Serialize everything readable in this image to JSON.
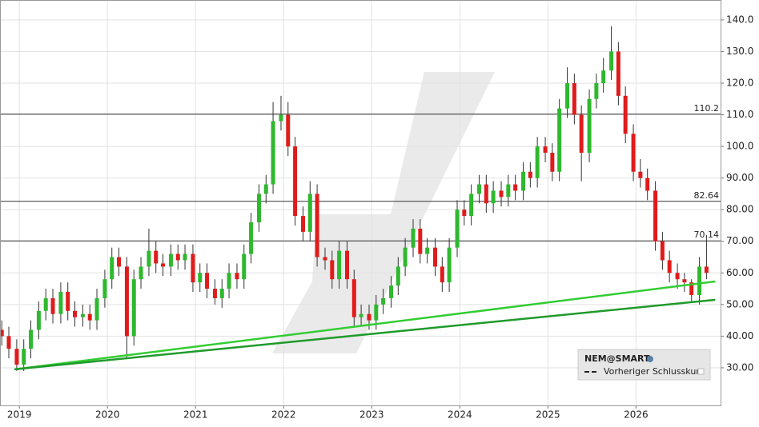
{
  "chart_data": {
    "type": "candlestick",
    "x": [
      2018.8,
      2018.88,
      2018.97,
      2019.05,
      2019.13,
      2019.22,
      2019.3,
      2019.38,
      2019.47,
      2019.55,
      2019.63,
      2019.72,
      2019.8,
      2019.88,
      2019.97,
      2020.05,
      2020.13,
      2020.22,
      2020.3,
      2020.38,
      2020.47,
      2020.55,
      2020.63,
      2020.72,
      2020.8,
      2020.88,
      2020.97,
      2021.05,
      2021.13,
      2021.22,
      2021.3,
      2021.38,
      2021.47,
      2021.55,
      2021.63,
      2021.72,
      2021.8,
      2021.88,
      2021.97,
      2022.05,
      2022.13,
      2022.22,
      2022.3,
      2022.38,
      2022.47,
      2022.55,
      2022.63,
      2022.72,
      2022.8,
      2022.88,
      2022.97,
      2023.05,
      2023.13,
      2023.22,
      2023.3,
      2023.38,
      2023.47,
      2023.55,
      2023.63,
      2023.72,
      2023.8,
      2023.88,
      2023.97,
      2024.05,
      2024.13,
      2024.22,
      2024.3,
      2024.38,
      2024.47,
      2024.55,
      2024.63,
      2024.72,
      2024.8,
      2024.88,
      2024.97,
      2025.05,
      2025.13,
      2025.22,
      2025.3,
      2025.38,
      2025.47,
      2025.55,
      2025.63,
      2025.72,
      2025.8,
      2025.88,
      2025.97,
      2026.05,
      2026.13,
      2026.22,
      2026.3,
      2026.38,
      2026.47,
      2026.55,
      2026.63,
      2026.72,
      2026.8
    ],
    "open": [
      42,
      40,
      36,
      31,
      36,
      42,
      48,
      52,
      47,
      54,
      48,
      46,
      47,
      45,
      52,
      58,
      65,
      62,
      40,
      58,
      62,
      67,
      63,
      62,
      66,
      64,
      66,
      57,
      60,
      55,
      52,
      55,
      60,
      58,
      66,
      76,
      85,
      88,
      108,
      110,
      100,
      78,
      73,
      85,
      65,
      64,
      58,
      67,
      58,
      46,
      47,
      45,
      50,
      52,
      56,
      62,
      68,
      74,
      66,
      68,
      62,
      57,
      68,
      80,
      78,
      85,
      88,
      82,
      86,
      84,
      88,
      86,
      92,
      90,
      100,
      98,
      92,
      112,
      120,
      110,
      98,
      115,
      120,
      124,
      130,
      116,
      104,
      92,
      90,
      86,
      70,
      64,
      60,
      58,
      57,
      53,
      62
    ],
    "high": [
      45,
      43,
      39,
      39,
      45,
      51,
      55,
      55,
      57,
      57,
      51,
      50,
      50,
      55,
      61,
      68,
      68,
      65,
      61,
      65,
      74,
      70,
      66,
      69,
      69,
      69,
      69,
      63,
      63,
      58,
      58,
      63,
      63,
      69,
      79,
      88,
      91,
      114,
      116,
      114,
      103,
      81,
      89,
      88,
      68,
      67,
      70,
      70,
      61,
      50,
      50,
      53,
      55,
      59,
      65,
      71,
      77,
      77,
      71,
      71,
      65,
      71,
      83,
      83,
      88,
      91,
      91,
      89,
      89,
      91,
      91,
      95,
      95,
      103,
      103,
      101,
      115,
      125,
      123,
      113,
      118,
      123,
      128,
      138,
      133,
      119,
      107,
      96,
      93,
      89,
      73,
      67,
      63,
      60,
      58,
      65,
      72
    ],
    "low": [
      37,
      33,
      29,
      29,
      33,
      39,
      45,
      44,
      44,
      45,
      43,
      43,
      42,
      42,
      49,
      55,
      59,
      33,
      37,
      55,
      59,
      60,
      59,
      59,
      61,
      61,
      54,
      54,
      52,
      50,
      49,
      52,
      55,
      55,
      63,
      73,
      82,
      85,
      105,
      97,
      75,
      70,
      70,
      62,
      61,
      55,
      55,
      55,
      43,
      43,
      42,
      42,
      47,
      49,
      53,
      59,
      65,
      63,
      63,
      59,
      54,
      54,
      65,
      75,
      75,
      82,
      79,
      79,
      81,
      81,
      83,
      83,
      87,
      87,
      95,
      89,
      89,
      109,
      107,
      89,
      95,
      112,
      117,
      121,
      113,
      101,
      89,
      87,
      83,
      67,
      61,
      57,
      55,
      54,
      51,
      50,
      58
    ],
    "close": [
      40,
      36,
      31,
      36,
      42,
      48,
      52,
      47,
      54,
      48,
      46,
      47,
      45,
      52,
      58,
      65,
      62,
      40,
      58,
      62,
      67,
      63,
      62,
      66,
      64,
      66,
      57,
      60,
      55,
      52,
      55,
      60,
      58,
      66,
      76,
      85,
      88,
      108,
      110,
      100,
      78,
      73,
      85,
      65,
      64,
      58,
      67,
      58,
      46,
      47,
      45,
      50,
      52,
      56,
      62,
      68,
      74,
      66,
      68,
      62,
      57,
      68,
      80,
      78,
      85,
      88,
      82,
      86,
      84,
      88,
      86,
      92,
      90,
      100,
      98,
      92,
      112,
      120,
      110,
      98,
      115,
      120,
      124,
      130,
      116,
      104,
      92,
      90,
      86,
      70,
      64,
      60,
      58,
      57,
      53,
      62,
      60
    ],
    "up_color": "#2eb82e",
    "down_color": "#e01b1b",
    "xlim": [
      2018.78,
      2026.96
    ],
    "ylim": [
      18.1,
      146.3
    ],
    "xticks": [
      2019,
      2020,
      2021,
      2022,
      2023,
      2024,
      2025,
      2026
    ],
    "yticks": [
      {
        "value": 30,
        "label": "30.00"
      },
      {
        "value": 40,
        "label": "40.00"
      },
      {
        "value": 50,
        "label": "50.00"
      },
      {
        "value": 60,
        "label": "60.00"
      },
      {
        "value": 70,
        "label": "70.00"
      },
      {
        "value": 80,
        "label": "80.00"
      },
      {
        "value": 90,
        "label": "90.00"
      },
      {
        "value": 100,
        "label": "100.0"
      },
      {
        "value": 110,
        "label": "110.0"
      },
      {
        "value": 120,
        "label": "120.0"
      },
      {
        "value": 130,
        "label": "130.0"
      },
      {
        "value": 140,
        "label": "140.0"
      }
    ],
    "grid": true,
    "levels": [
      110.2,
      82.64,
      70.14
    ],
    "trendlines": [
      {
        "color": "#33cc33",
        "x": [
          2018.945,
          2026.9
        ],
        "values": [
          29.5,
          57.3
        ]
      },
      {
        "color": "#1f9a2a",
        "x": [
          2018.945,
          2026.9
        ],
        "values": [
          29.5,
          51.5
        ]
      }
    ],
    "legend": {
      "title": "NEM@SMART",
      "entries": [
        "Vorheriger Schlusskurs"
      ]
    }
  }
}
